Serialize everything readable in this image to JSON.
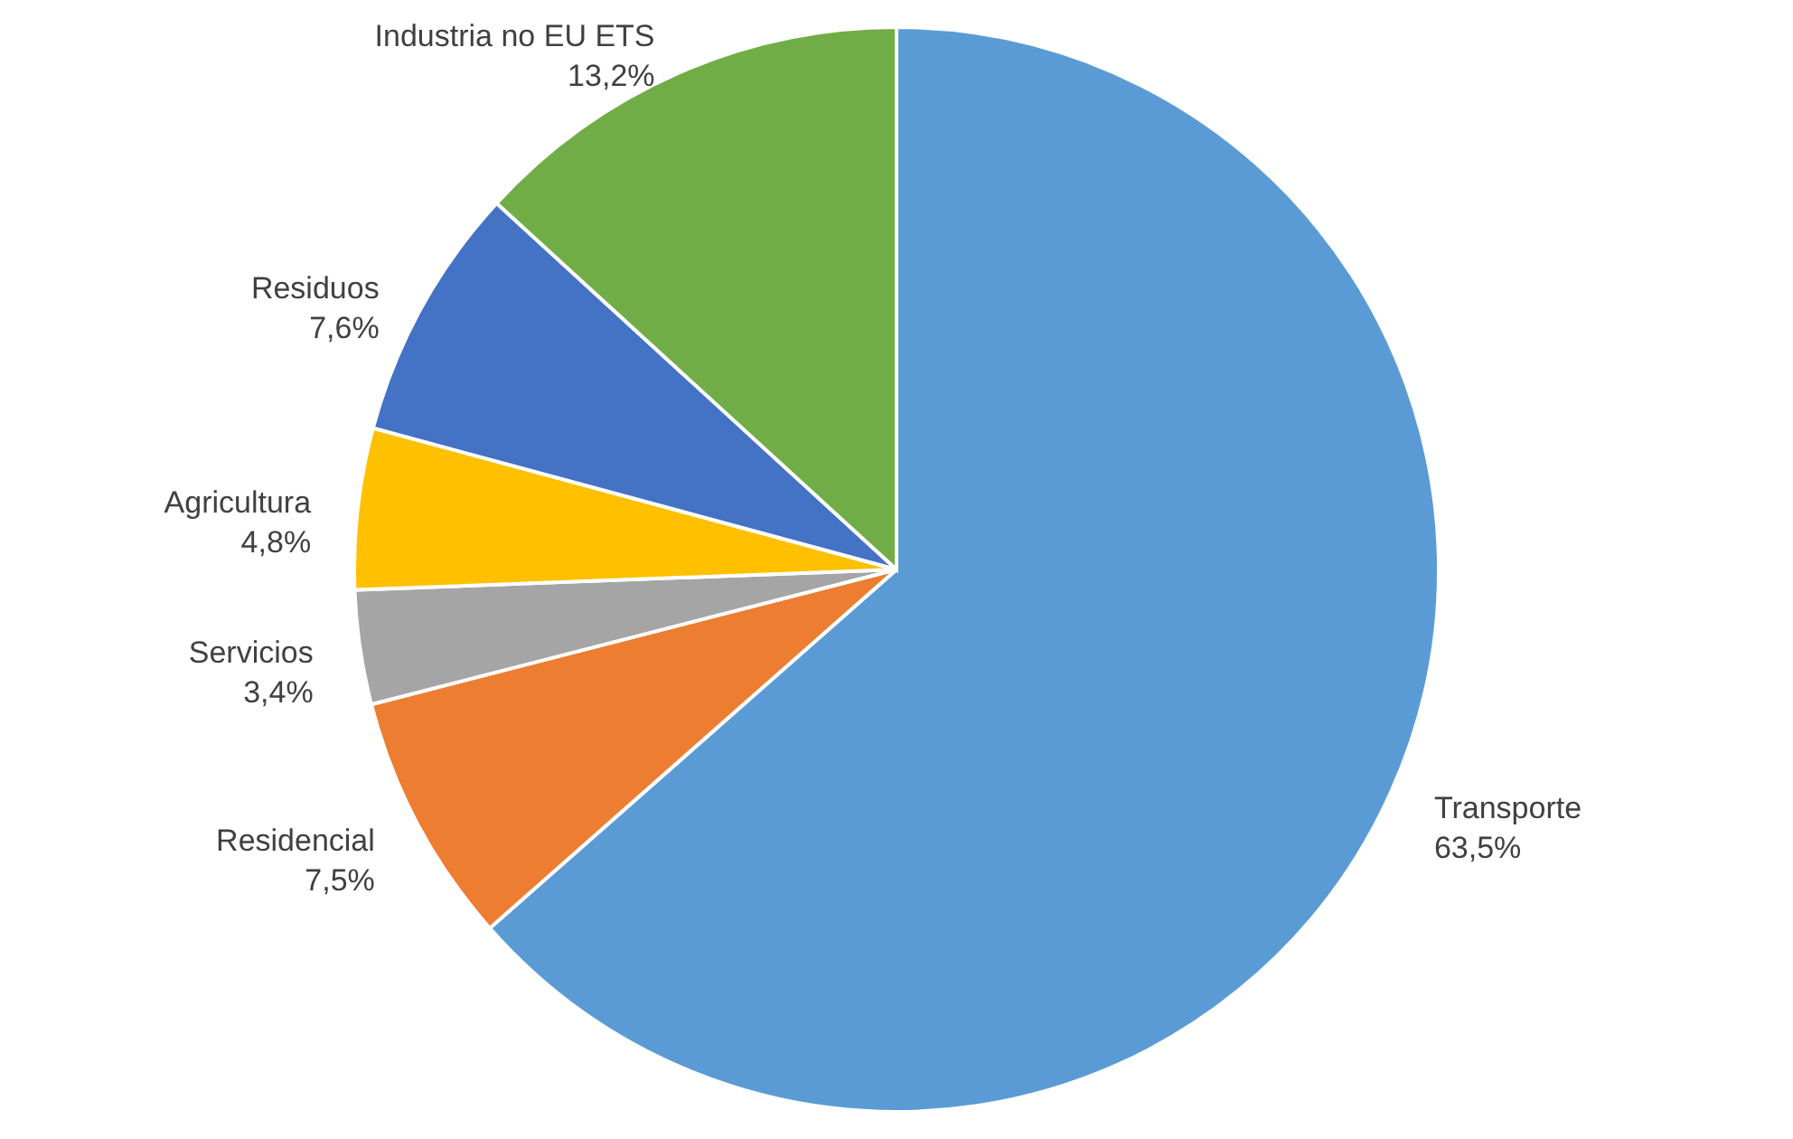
{
  "chart_data": {
    "type": "pie",
    "categories": [
      "Transporte",
      "Residencial",
      "Servicios",
      "Agricultura",
      "Residuos",
      "Industria no EU ETS"
    ],
    "values": [
      63.5,
      7.5,
      3.4,
      4.8,
      7.6,
      13.2
    ],
    "value_labels": [
      "63,5%",
      "7,5%",
      "3,4%",
      "4,8%",
      "7,6%",
      "13,2%"
    ],
    "colors": [
      "#5b9bd5",
      "#ed7d31",
      "#a5a5a5",
      "#ffc000",
      "#4472c4",
      "#70ad47"
    ]
  }
}
